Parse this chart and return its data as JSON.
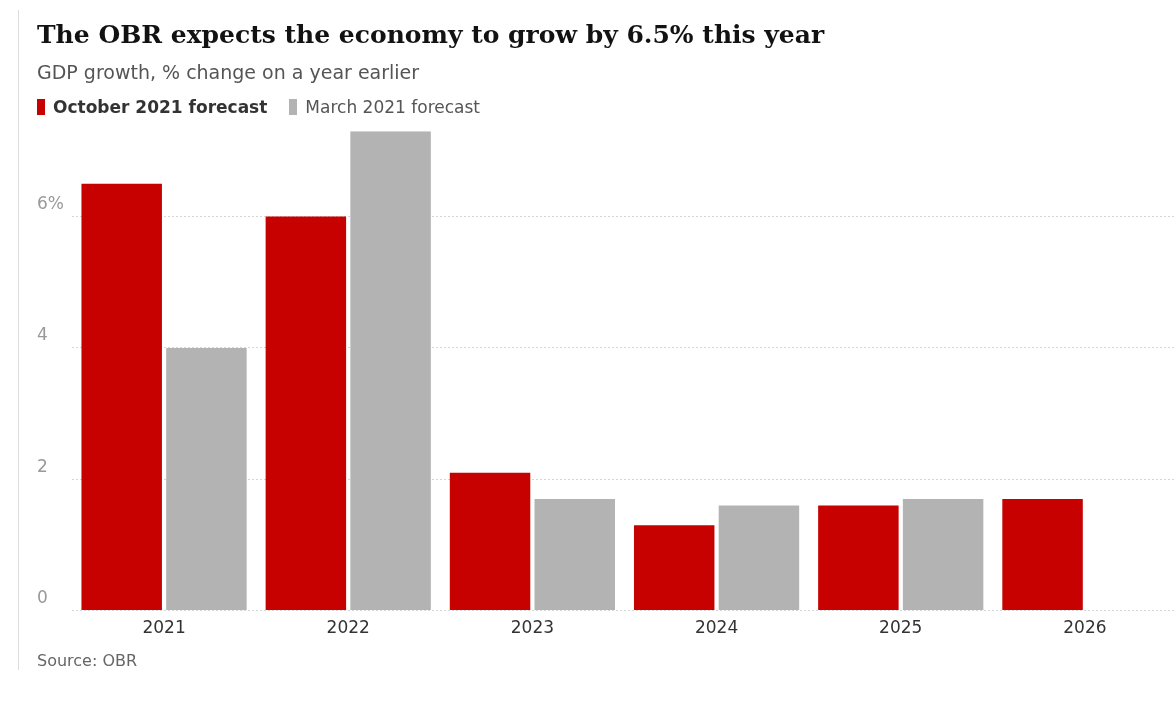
{
  "chart_data": {
    "type": "bar",
    "title": "The OBR expects the economy to grow by 6.5% this year",
    "subtitle": "GDP growth, % change on a year earlier",
    "categories": [
      "2021",
      "2022",
      "2023",
      "2024",
      "2025",
      "2026"
    ],
    "series": [
      {
        "name": "October 2021 forecast",
        "color": "#c70000",
        "values": [
          6.5,
          6.0,
          2.1,
          1.3,
          1.6,
          1.7
        ]
      },
      {
        "name": "March 2021 forecast",
        "color": "#b3b3b3",
        "values": [
          4.0,
          7.3,
          1.7,
          1.6,
          1.7,
          null
        ]
      }
    ],
    "ylim": [
      0,
      7.3
    ],
    "yticks": [
      0,
      2,
      4,
      {
        "value": 6,
        "label": "6%"
      }
    ],
    "grid": "y",
    "legend": "top left",
    "annotations": [
      "Source: OBR"
    ]
  }
}
